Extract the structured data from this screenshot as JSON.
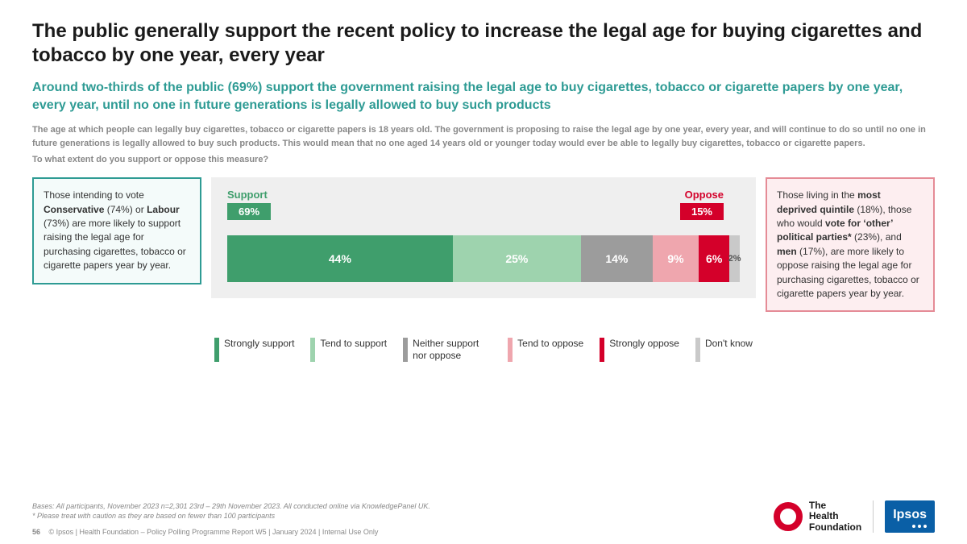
{
  "colors": {
    "teal": "#2e9b94",
    "chart_bg": "#efefef",
    "callout_left_border": "#2e9b94",
    "callout_left_bg": "#f4fbfa",
    "callout_right_border": "#e58b96",
    "callout_right_bg": "#fdeef0"
  },
  "title": "The public generally support the recent policy to increase the legal age for buying cigarettes and tobacco by one year, every year",
  "subtitle": "Around two-thirds of the public (69%) support the government raising the legal age to buy cigarettes, tobacco or cigarette papers by one year, every year, until no one in future generations is legally allowed to buy such products",
  "explain": "The age at which people can legally buy cigarettes, tobacco or cigarette papers is 18 years old. The government is proposing to raise the legal age by one year, every year, and will continue to do so until no one in future generations is legally allowed to buy such products. This would mean that no one aged 14 years old or younger today would ever be able to legally buy cigarettes, tobacco or cigarette papers.",
  "question": "To what extent do you support or oppose this measure?",
  "callout_left": {
    "pre": "Those intending to vote ",
    "b1": "Conservative",
    "p1": " (74%) or ",
    "b2": "Labour",
    "post": " (73%) are more likely to support raising the legal age for purchasing cigarettes, tobacco or cigarette papers year by year."
  },
  "callout_right": {
    "pre": "Those living in the ",
    "b1": "most deprived quintile",
    "p1": " (18%), those who would ",
    "b2": "vote for ‘other’ political parties*",
    "p2": " (23%), and ",
    "b3": "men",
    "post": " (17%), are more likely to oppose raising the legal age for purchasing cigarettes, tobacco or cigarette papers year by year."
  },
  "chart": {
    "support_label": "Support",
    "support_total": "69%",
    "support_color": "#3f9e6c",
    "oppose_label": "Oppose",
    "oppose_total": "15%",
    "oppose_color": "#d4002a",
    "segments": [
      {
        "label": "Strongly support",
        "value": 44,
        "text": "44%",
        "color": "#3f9e6c",
        "textcolor": "#ffffff"
      },
      {
        "label": "Tend to support",
        "value": 25,
        "text": "25%",
        "color": "#9ed3ae",
        "textcolor": "#ffffff"
      },
      {
        "label": "Neither support nor oppose",
        "value": 14,
        "text": "14%",
        "color": "#9c9c9c",
        "textcolor": "#ffffff"
      },
      {
        "label": "Tend to oppose",
        "value": 9,
        "text": "9%",
        "color": "#efa6ae",
        "textcolor": "#ffffff"
      },
      {
        "label": "Strongly oppose",
        "value": 6,
        "text": "6%",
        "color": "#d4002a",
        "textcolor": "#ffffff"
      },
      {
        "label": "Don't know",
        "value": 2,
        "text": "2%",
        "color": "#c9c9c9",
        "textcolor": "#555555"
      }
    ]
  },
  "footnotes": {
    "l1": "Bases: All participants, November 2023 n=2,301 23rd – 29th November 2023. All conducted online via KnowledgePanel UK.",
    "l2": "* Please treat with caution as they are based on fewer than 100 participants"
  },
  "footer": {
    "page": "56",
    "text": "© Ipsos | Health Foundation – Policy Polling Programme Report W5 | January 2024 | Internal Use Only"
  },
  "logos": {
    "thf_l1": "The",
    "thf_l2": "Health",
    "thf_l3": "Foundation",
    "ipsos": "Ipsos"
  }
}
